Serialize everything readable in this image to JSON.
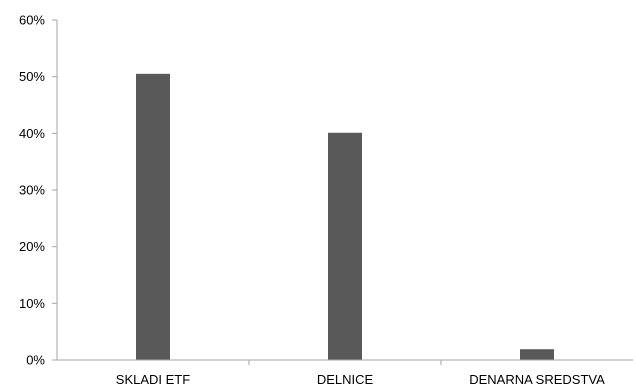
{
  "chart_data": {
    "type": "bar",
    "categories": [
      "SKLADI ETF",
      "DELNICE",
      "DENARNA SREDSTVA"
    ],
    "series": [
      {
        "values": [
          50.5,
          40.1,
          1.9
        ]
      }
    ],
    "y_ticks": [
      "0%",
      "10%",
      "20%",
      "30%",
      "40%",
      "50%",
      "60%"
    ],
    "ylim": [
      0,
      60
    ],
    "y_unit": "%",
    "grid": false,
    "legend": "none",
    "title": "",
    "xlabel": "",
    "ylabel": "",
    "colors": {
      "bar": "#595959",
      "axis": "#a6a6a6",
      "text": "#000000",
      "background": "#ffffff"
    }
  }
}
